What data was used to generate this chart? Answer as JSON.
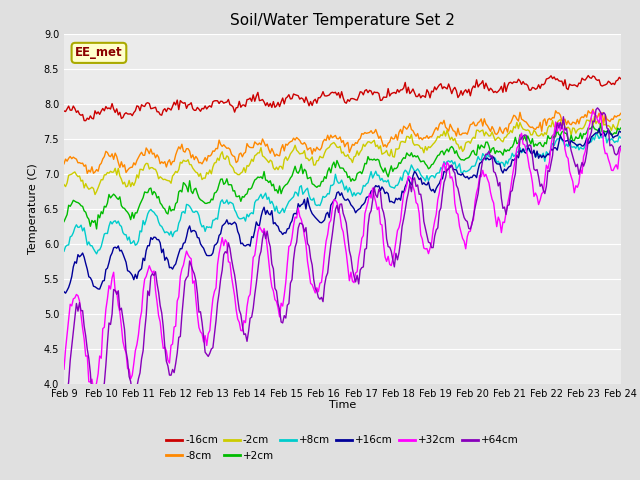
{
  "title": "Soil/Water Temperature Set 2",
  "xlabel": "Time",
  "ylabel": "Temperature (C)",
  "ylim": [
    4.0,
    9.0
  ],
  "yticks": [
    4.0,
    4.5,
    5.0,
    5.5,
    6.0,
    6.5,
    7.0,
    7.5,
    8.0,
    8.5,
    9.0
  ],
  "xtick_labels": [
    "Feb 9",
    "Feb 10",
    "Feb 11",
    "Feb 12",
    "Feb 13",
    "Feb 14",
    "Feb 15",
    "Feb 16",
    "Feb 17",
    "Feb 18",
    "Feb 19",
    "Feb 20",
    "Feb 21",
    "Feb 22",
    "Feb 23",
    "Feb 24"
  ],
  "annotation": "EE_met",
  "bg_color": "#e0e0e0",
  "plot_bg_color": "#ebebeb",
  "series": [
    {
      "label": "-16cm",
      "color": "#cc0000"
    },
    {
      "label": "-8cm",
      "color": "#ff8800"
    },
    {
      "label": "-2cm",
      "color": "#cccc00"
    },
    {
      "label": "+2cm",
      "color": "#00bb00"
    },
    {
      "label": "+8cm",
      "color": "#00cccc"
    },
    {
      "label": "+16cm",
      "color": "#000099"
    },
    {
      "label": "+32cm",
      "color": "#ff00ff"
    },
    {
      "label": "+64cm",
      "color": "#8800bb"
    }
  ]
}
